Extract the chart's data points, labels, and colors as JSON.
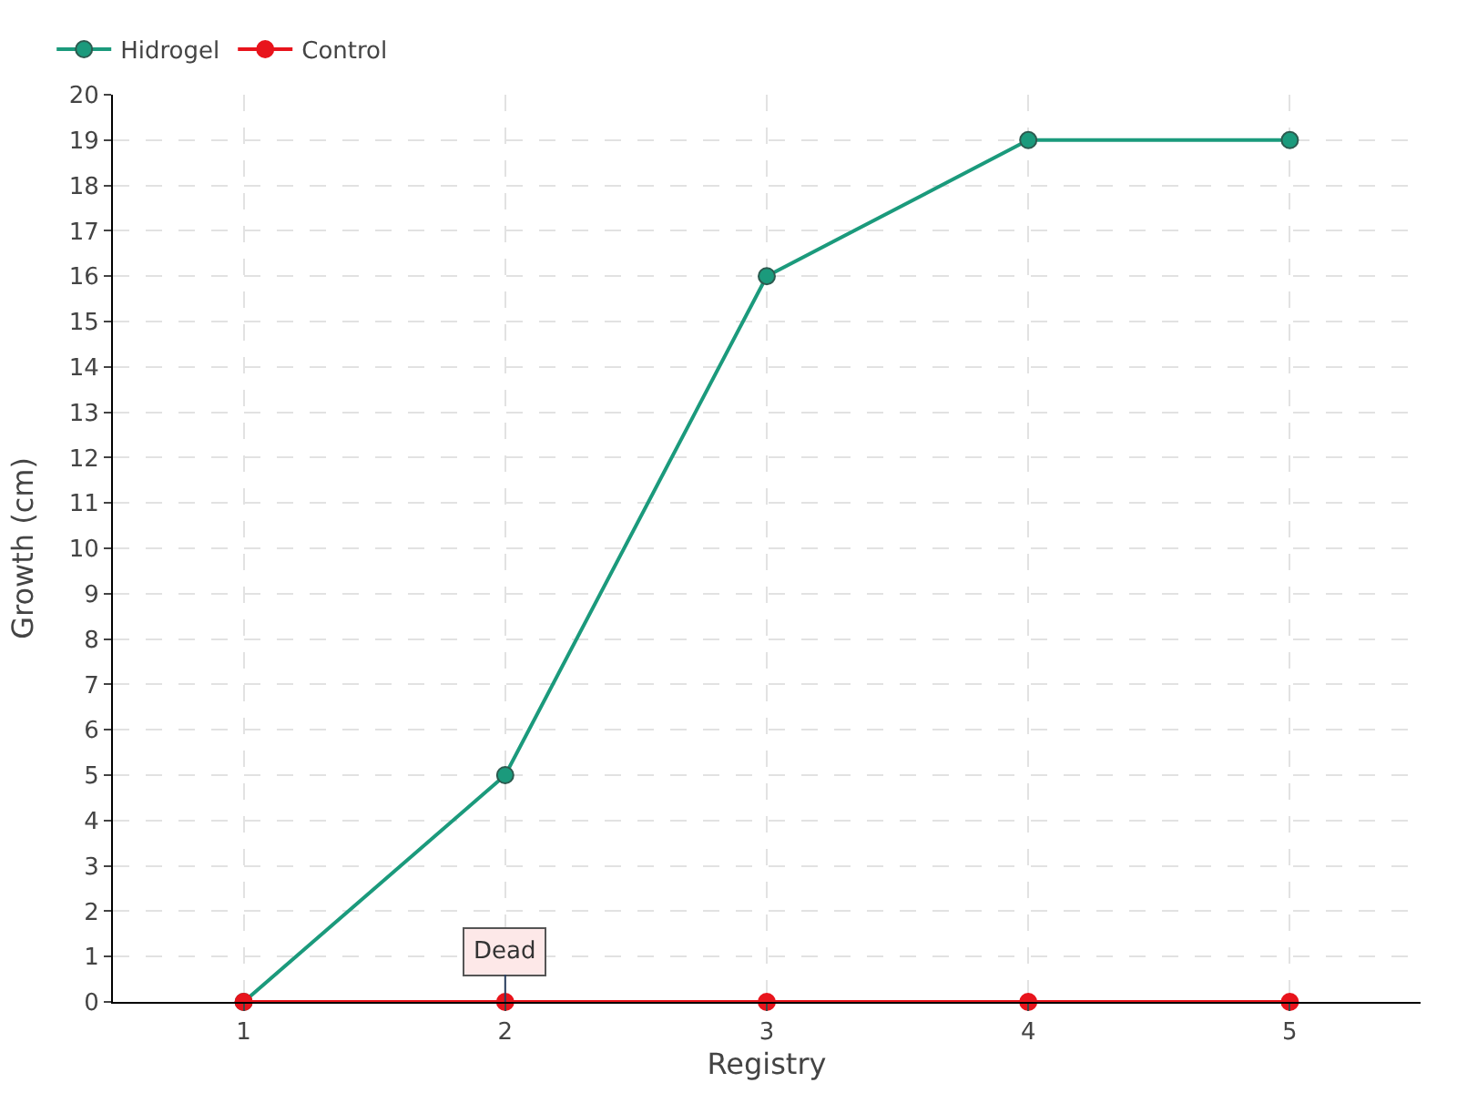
{
  "chart_data": {
    "type": "line",
    "xlabel": "Registry",
    "ylabel": "Growth (cm)",
    "categories": [
      "1",
      "2",
      "3",
      "4",
      "5"
    ],
    "series": [
      {
        "name": "Hidrogel",
        "color": "#1b9a7c",
        "values": [
          0,
          5,
          16,
          19,
          19
        ]
      },
      {
        "name": "Control",
        "color": "#e8141c",
        "values": [
          0,
          0,
          0,
          0,
          0
        ]
      }
    ],
    "ylim": [
      0,
      20
    ],
    "yticks": [
      0,
      1,
      2,
      3,
      4,
      5,
      6,
      7,
      8,
      9,
      10,
      11,
      12,
      13,
      14,
      15,
      16,
      17,
      18,
      19,
      20
    ],
    "annotations": [
      {
        "text": "Dead",
        "x": "2",
        "y": 0
      }
    ],
    "grid": true,
    "legend": "top left",
    "marker": "circle",
    "line_style": "solid"
  }
}
